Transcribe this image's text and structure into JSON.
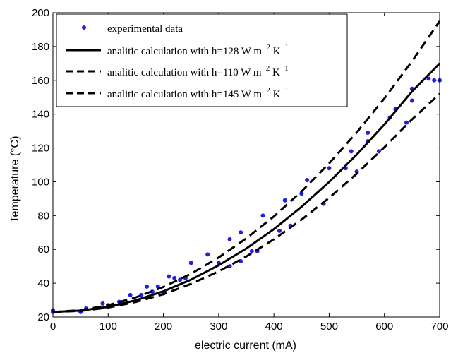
{
  "chart_data": {
    "type": "scatter",
    "xlabel": "electric current (mA)",
    "ylabel": "Temperature (°C)",
    "xlim": [
      0,
      700
    ],
    "ylim": [
      20,
      200
    ],
    "x_ticks": [
      0,
      100,
      200,
      300,
      400,
      500,
      600,
      700
    ],
    "y_ticks": [
      20,
      40,
      60,
      80,
      100,
      120,
      140,
      160,
      180,
      200
    ],
    "x_tick_labels": [
      "0",
      "100",
      "200",
      "300",
      "400",
      "500",
      "600",
      "700"
    ],
    "y_tick_labels": [
      "20",
      "40",
      "60",
      "80",
      "100",
      "120",
      "140",
      "160",
      "180",
      "200"
    ],
    "grid": false,
    "legend_position": "top-left",
    "colors": {
      "points": "#1f1fe6",
      "lines": "#000000"
    },
    "series": [
      {
        "name": "experimental data",
        "kind": "markers",
        "x": [
          0,
          0,
          50,
          60,
          90,
          100,
          120,
          140,
          160,
          170,
          180,
          190,
          200,
          210,
          220,
          230,
          240,
          250,
          280,
          300,
          320,
          320,
          340,
          340,
          360,
          370,
          380,
          410,
          420,
          430,
          450,
          460,
          490,
          500,
          530,
          540,
          550,
          570,
          570,
          590,
          610,
          620,
          640,
          650,
          650,
          680,
          690,
          700
        ],
        "y": [
          23,
          24,
          23,
          25,
          28,
          27,
          29,
          33,
          33,
          38,
          35,
          38,
          34,
          44,
          43,
          42,
          43,
          52,
          57,
          52,
          50,
          66,
          53,
          70,
          59,
          59,
          80,
          71,
          89,
          74,
          93,
          101,
          87,
          108,
          108,
          118,
          106,
          124,
          129,
          118,
          138,
          143,
          135,
          148,
          155,
          161,
          160,
          160
        ]
      },
      {
        "name": "analitic calculation with h=128 W m^{-2} K^{-1}",
        "legend_main": "analitic calculation with h=128 W m",
        "legend_exp1": "−2",
        "legend_mid": " K",
        "legend_exp2": "−1",
        "kind": "solid-line",
        "x": [
          0,
          50,
          100,
          150,
          200,
          250,
          300,
          350,
          400,
          450,
          500,
          550,
          600,
          650,
          700
        ],
        "y": [
          23,
          23.8,
          26,
          29.9,
          35.2,
          42.1,
          50.6,
          60.5,
          72.0,
          85.2,
          99.9,
          116.1,
          133.9,
          153.4,
          170.0
        ]
      },
      {
        "name": "analitic calculation with h=110 W m^{-2} K^{-1}",
        "legend_main": "analitic calculation with h=110 W m",
        "legend_exp1": "−2",
        "legend_mid": " K",
        "legend_exp2": "−1",
        "kind": "dashed-line",
        "x": [
          0,
          50,
          100,
          150,
          200,
          250,
          300,
          350,
          400,
          450,
          500,
          550,
          600,
          650,
          700
        ],
        "y": [
          23,
          24.0,
          27.0,
          31.6,
          37.8,
          45.6,
          55.2,
          66.5,
          79.5,
          94.3,
          110.9,
          129.2,
          149.3,
          171.3,
          195.0
        ]
      },
      {
        "name": "analitic calculation with h=145 W m^{-2} K^{-1}",
        "legend_main": "analitic calculation with h=145 W m",
        "legend_exp1": "−2",
        "legend_mid": " K",
        "legend_exp2": "−1",
        "kind": "dashed-line",
        "x": [
          0,
          50,
          100,
          150,
          200,
          250,
          300,
          350,
          400,
          450,
          500,
          550,
          600,
          650,
          700
        ],
        "y": [
          23,
          23.6,
          25.6,
          28.9,
          33.5,
          39.6,
          47.0,
          55.8,
          66.0,
          77.6,
          90.5,
          104.8,
          120.4,
          136.9,
          152.0
        ]
      }
    ]
  }
}
